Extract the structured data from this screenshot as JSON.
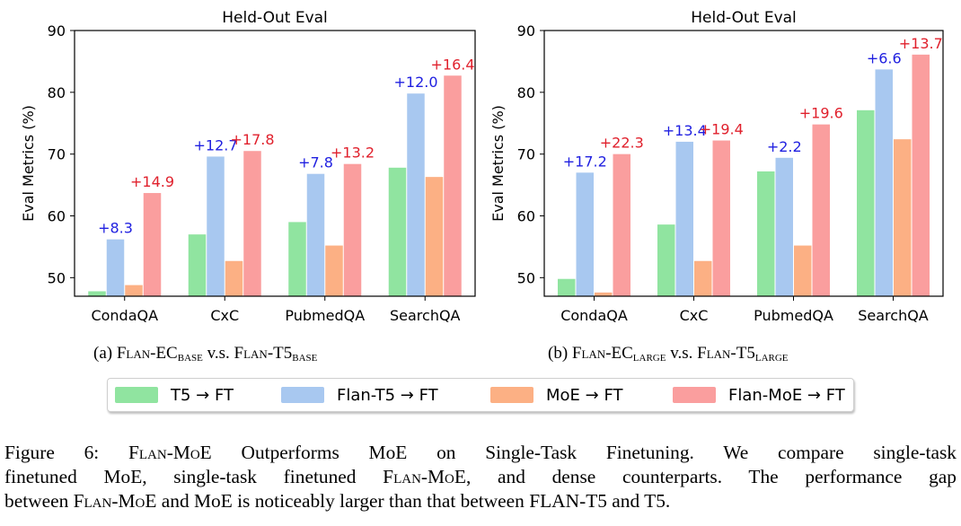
{
  "chart_data": [
    {
      "type": "bar",
      "title": "Held-Out Eval",
      "xlabel": "",
      "ylabel": "Eval Metrics (%)",
      "ylim": [
        47,
        90
      ],
      "yticks": [
        "50",
        "60",
        "70",
        "80",
        "90"
      ],
      "categories": [
        "CondaQA",
        "CxC",
        "PubmedQA",
        "SearchQA"
      ],
      "series": [
        {
          "name": "T5 → FT",
          "color": "#90e4a0",
          "values": [
            47.8,
            57.0,
            59.0,
            67.8
          ]
        },
        {
          "name": "Flan-T5 → FT",
          "color": "#a8c8f0",
          "values": [
            56.2,
            69.6,
            66.8,
            79.8
          ]
        },
        {
          "name": "MoE → FT",
          "color": "#fcb084",
          "values": [
            48.8,
            52.7,
            55.2,
            66.3
          ]
        },
        {
          "name": "Flan-MoE → FT",
          "color": "#fa9e9e",
          "values": [
            63.7,
            70.5,
            68.4,
            82.7
          ]
        }
      ],
      "annotations": [
        {
          "series": 1,
          "category": 0,
          "text": "+8.3",
          "color": "#1f1fe0"
        },
        {
          "series": 1,
          "category": 1,
          "text": "+12.7",
          "color": "#1f1fe0"
        },
        {
          "series": 1,
          "category": 2,
          "text": "+7.8",
          "color": "#1f1fe0"
        },
        {
          "series": 1,
          "category": 3,
          "text": "+12.0",
          "color": "#1f1fe0"
        },
        {
          "series": 3,
          "category": 0,
          "text": "+14.9",
          "color": "#e0202c"
        },
        {
          "series": 3,
          "category": 1,
          "text": "+17.8",
          "color": "#e0202c"
        },
        {
          "series": 3,
          "category": 2,
          "text": "+13.2",
          "color": "#e0202c"
        },
        {
          "series": 3,
          "category": 3,
          "text": "+16.4",
          "color": "#e0202c"
        }
      ]
    },
    {
      "type": "bar",
      "title": "Held-Out Eval",
      "xlabel": "",
      "ylabel": "Eval Metrics (%)",
      "ylim": [
        47,
        90
      ],
      "yticks": [
        "50",
        "60",
        "70",
        "80",
        "90"
      ],
      "categories": [
        "CondaQA",
        "CxC",
        "PubmedQA",
        "SearchQA"
      ],
      "series": [
        {
          "name": "T5 → FT",
          "color": "#90e4a0",
          "values": [
            49.8,
            58.6,
            67.2,
            77.1
          ]
        },
        {
          "name": "Flan-T5 → FT",
          "color": "#a8c8f0",
          "values": [
            67.0,
            72.0,
            69.4,
            83.7
          ]
        },
        {
          "name": "MoE → FT",
          "color": "#fcb084",
          "values": [
            47.6,
            52.7,
            55.2,
            72.4
          ]
        },
        {
          "name": "Flan-MoE → FT",
          "color": "#fa9e9e",
          "values": [
            70.0,
            72.2,
            74.8,
            86.1
          ]
        }
      ],
      "annotations": [
        {
          "series": 1,
          "category": 0,
          "text": "+17.2",
          "color": "#1f1fe0"
        },
        {
          "series": 1,
          "category": 1,
          "text": "+13.4",
          "color": "#1f1fe0"
        },
        {
          "series": 1,
          "category": 2,
          "text": "+2.2",
          "color": "#1f1fe0"
        },
        {
          "series": 1,
          "category": 3,
          "text": "+6.6",
          "color": "#1f1fe0"
        },
        {
          "series": 3,
          "category": 0,
          "text": "+22.3",
          "color": "#e0202c"
        },
        {
          "series": 3,
          "category": 1,
          "text": "+19.4",
          "color": "#e0202c"
        },
        {
          "series": 3,
          "category": 2,
          "text": "+19.6",
          "color": "#e0202c"
        },
        {
          "series": 3,
          "category": 3,
          "text": "+13.7",
          "color": "#e0202c"
        }
      ]
    }
  ],
  "subcaptions": {
    "a": {
      "prefix": "(a) ",
      "model1": "Flan-EC",
      "size1": "BASE",
      "mid": " v.s. ",
      "model2": "Flan-T5",
      "size2": "BASE"
    },
    "b": {
      "prefix": "(b) ",
      "model1": "Flan-EC",
      "size1": "LARGE",
      "mid": " v.s. ",
      "model2": "Flan-T5",
      "size2": "LARGE"
    }
  },
  "legend": [
    {
      "label": "T5 → FT",
      "color": "#90e4a0"
    },
    {
      "label": "Flan-T5 → FT",
      "color": "#a8c8f0"
    },
    {
      "label": "MoE → FT",
      "color": "#fcb084"
    },
    {
      "label": "Flan-MoE → FT",
      "color": "#fa9e9e"
    }
  ],
  "figure_caption": {
    "l1_a": "Figure 6: ",
    "l1_b": "Flan-MoE",
    "l1_c": " Outperforms MoE on Single-Task Finetuning.  We compare single-task",
    "l2_a": "finetuned MoE, single-task finetuned ",
    "l2_b": "Flan-MoE",
    "l2_c": ", and dense counterparts. The performance gap",
    "l3_a": "between ",
    "l3_b": "Flan-MoE",
    "l3_c": " and MoE is noticeably larger than that between FLAN-T5 and T5."
  }
}
